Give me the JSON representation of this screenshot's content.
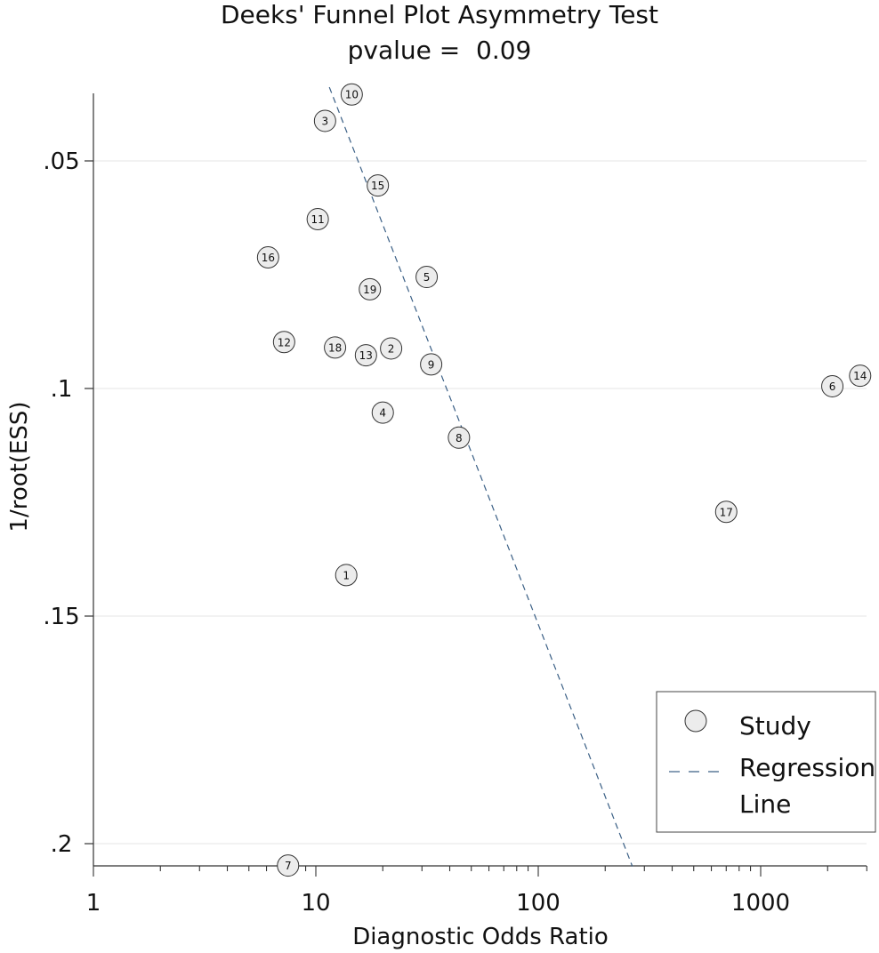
{
  "chart_data": {
    "type": "scatter",
    "title": "Deeks' Funnel Plot Asymmetry Test",
    "subtitle": "pvalue =  0.09",
    "xlabel": "Diagnostic Odds Ratio",
    "ylabel": "1/root(ESS)",
    "x_scale": "log",
    "xlim": [
      1,
      2900
    ],
    "ylim": [
      0.035,
      0.205
    ],
    "y_inverted": true,
    "x_ticks": [
      1,
      10,
      100,
      1000
    ],
    "x_tick_labels": [
      "1",
      "10",
      "100",
      "1000"
    ],
    "y_ticks": [
      0.05,
      0.1,
      0.15,
      0.2
    ],
    "y_tick_labels": [
      ".05",
      ".1",
      ".15",
      ".2"
    ],
    "grid": true,
    "legend_position": "bottom-right",
    "series": [
      {
        "name": "Study",
        "points": [
          {
            "id": "1",
            "x": 13.7,
            "y": 0.141
          },
          {
            "id": "2",
            "x": 21.8,
            "y": 0.0912
          },
          {
            "id": "3",
            "x": 11.0,
            "y": 0.0412
          },
          {
            "id": "4",
            "x": 20.0,
            "y": 0.1053
          },
          {
            "id": "5",
            "x": 31.5,
            "y": 0.0755
          },
          {
            "id": "6",
            "x": 2100,
            "y": 0.0995
          },
          {
            "id": "7",
            "x": 7.5,
            "y": 0.2048
          },
          {
            "id": "8",
            "x": 44.0,
            "y": 0.1108
          },
          {
            "id": "9",
            "x": 33.0,
            "y": 0.0947
          },
          {
            "id": "10",
            "x": 14.5,
            "y": 0.0354
          },
          {
            "id": "11",
            "x": 10.2,
            "y": 0.0628
          },
          {
            "id": "12",
            "x": 7.2,
            "y": 0.0898
          },
          {
            "id": "13",
            "x": 16.8,
            "y": 0.0927
          },
          {
            "id": "14",
            "x": 2800,
            "y": 0.0972
          },
          {
            "id": "15",
            "x": 19.0,
            "y": 0.0554
          },
          {
            "id": "16",
            "x": 6.1,
            "y": 0.0712
          },
          {
            "id": "17",
            "x": 700,
            "y": 0.1271
          },
          {
            "id": "18",
            "x": 12.2,
            "y": 0.091
          },
          {
            "id": "19",
            "x": 17.5,
            "y": 0.0782
          }
        ]
      },
      {
        "name": "Regression Line",
        "line": [
          {
            "x": 11.5,
            "y": 0.0338
          },
          {
            "x": 265,
            "y": 0.205
          }
        ]
      }
    ],
    "legend": {
      "entries": [
        "Study",
        "Regression",
        "Line"
      ]
    }
  },
  "colors": {
    "marker_fill": "#ececec",
    "marker_stroke": "#333333",
    "regression": "#3a5f85",
    "grid": "#e6e6e6",
    "axis": "#333333"
  }
}
